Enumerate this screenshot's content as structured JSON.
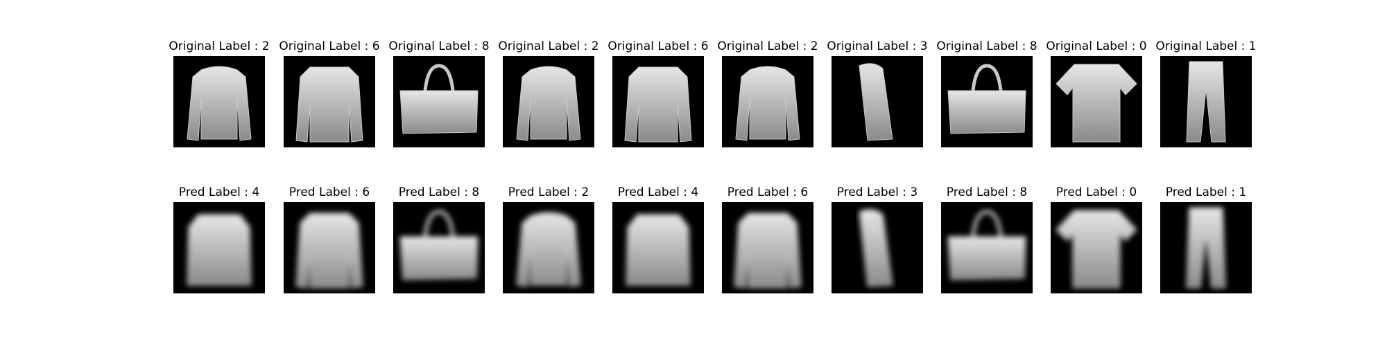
{
  "figure": {
    "rows": [
      {
        "row": "original",
        "titles": [
          "Original Label : 2",
          "Original Label : 6",
          "Original Label : 8",
          "Original Label : 2",
          "Original Label : 6",
          "Original Label : 2",
          "Original Label : 3",
          "Original Label : 8",
          "Original Label : 0",
          "Original Label : 1"
        ],
        "labels": [
          2,
          6,
          8,
          2,
          6,
          2,
          3,
          8,
          0,
          1
        ],
        "icons": [
          "pullover-image",
          "shirt-image",
          "bag-image",
          "pullover-image",
          "shirt-image",
          "pullover-image",
          "dress-image",
          "bag-image",
          "tshirt-image",
          "trouser-image"
        ]
      },
      {
        "row": "pred",
        "titles": [
          "Pred Label : 4",
          "Pred Label : 6",
          "Pred Label : 8",
          "Pred Label : 2",
          "Pred Label : 4",
          "Pred Label : 6",
          "Pred Label : 3",
          "Pred Label : 8",
          "Pred Label : 0",
          "Pred Label : 1"
        ],
        "labels": [
          4,
          6,
          8,
          2,
          4,
          6,
          3,
          8,
          0,
          1
        ],
        "icons": [
          "blurred-coat-image",
          "blurred-shirt-image",
          "blurred-bag-image",
          "blurred-pullover-image",
          "blurred-coat-image",
          "blurred-shirt-image",
          "blurred-dress-image",
          "blurred-bag-image",
          "blurred-tshirt-image",
          "blurred-trouser-image"
        ]
      }
    ],
    "colors": {
      "background": "#000000",
      "garment": "#c8c8c8",
      "garment_light": "#e6e6e6",
      "garment_dark": "#8a8a8a"
    }
  }
}
